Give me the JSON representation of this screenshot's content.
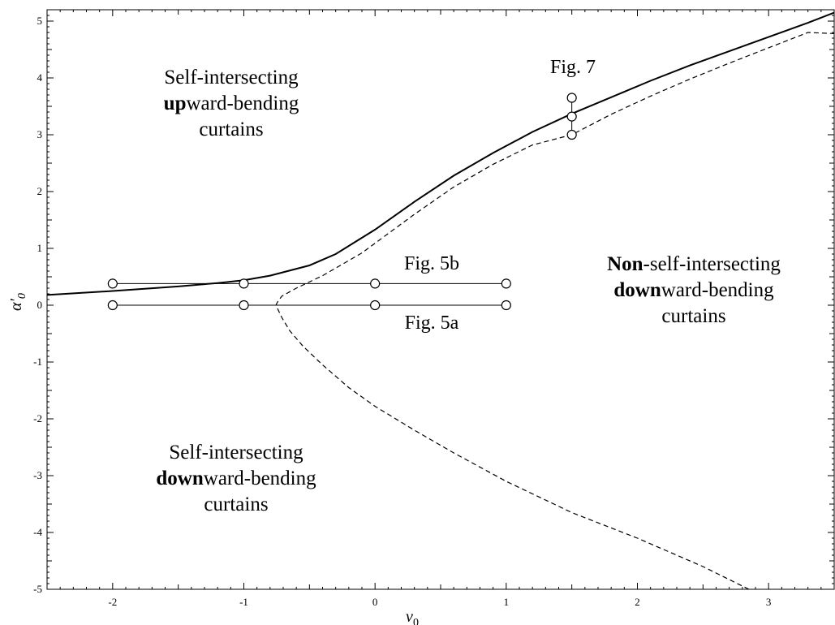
{
  "chart_data": {
    "type": "line",
    "xlabel": "v",
    "xlabel_subscript": "0",
    "ylabel": "α′",
    "ylabel_subscript": "0",
    "xlim": [
      -2.5,
      3.5
    ],
    "ylim": [
      -5,
      5.2
    ],
    "x_ticks": [
      -2,
      -1,
      0,
      1,
      2,
      3
    ],
    "x_tick_labels": [
      "-2",
      "-1",
      "0",
      "1",
      "2",
      "3"
    ],
    "y_ticks": [
      -5,
      -4,
      -3,
      -2,
      -1,
      0,
      1,
      2,
      3,
      4,
      5
    ],
    "y_tick_labels": [
      "-5",
      "-4",
      "-3",
      "-2",
      "-1",
      "0",
      "1",
      "2",
      "3",
      "4",
      "5"
    ],
    "series": [
      {
        "style": "solid",
        "x": [
          -2.5,
          -2.0,
          -1.5,
          -1.2,
          -1.0,
          -0.8,
          -0.5,
          -0.3,
          0.0,
          0.3,
          0.6,
          0.9,
          1.2,
          1.5,
          1.8,
          2.1,
          2.4,
          2.7,
          3.0,
          3.3,
          3.5
        ],
        "y": [
          0.18,
          0.25,
          0.33,
          0.39,
          0.44,
          0.52,
          0.7,
          0.9,
          1.33,
          1.82,
          2.28,
          2.68,
          3.05,
          3.37,
          3.66,
          3.95,
          4.22,
          4.47,
          4.72,
          4.97,
          5.15
        ]
      },
      {
        "style": "dashed",
        "x": [
          2.85,
          2.5,
          2.0,
          1.5,
          1.0,
          0.6,
          0.3,
          0.0,
          -0.2,
          -0.4,
          -0.55,
          -0.65,
          -0.71,
          -0.745,
          -0.755,
          -0.745,
          -0.71,
          -0.6,
          -0.4,
          -0.1,
          0.3,
          0.6,
          0.9,
          1.2,
          1.5,
          1.8,
          2.1,
          2.4,
          2.7,
          3.0,
          3.3,
          3.5
        ],
        "y": [
          -5.0,
          -4.6,
          -4.1,
          -3.65,
          -3.1,
          -2.6,
          -2.2,
          -1.78,
          -1.45,
          -1.05,
          -0.72,
          -0.45,
          -0.22,
          -0.05,
          0.0,
          0.05,
          0.16,
          0.3,
          0.52,
          0.92,
          1.6,
          2.08,
          2.48,
          2.82,
          3.0,
          3.36,
          3.68,
          3.98,
          4.26,
          4.53,
          4.8,
          4.78
        ]
      }
    ],
    "marker_lines": [
      {
        "label": "Fig. 5b",
        "points": [
          [
            -2,
            0.38
          ],
          [
            -1,
            0.38
          ],
          [
            0,
            0.38
          ],
          [
            1,
            0.38
          ]
        ]
      },
      {
        "label": "Fig. 5a",
        "points": [
          [
            -2,
            0.0
          ],
          [
            -1,
            0.0
          ],
          [
            0,
            0.0
          ],
          [
            1,
            0.0
          ]
        ]
      },
      {
        "label": "Fig. 7",
        "points": [
          [
            1.5,
            3.0
          ],
          [
            1.5,
            3.32
          ],
          [
            1.5,
            3.65
          ]
        ]
      }
    ],
    "regions": [
      {
        "lines": [
          [
            {
              "text": "Self-intersecting",
              "bold": false
            }
          ],
          [
            {
              "text": "up",
              "bold": true
            },
            {
              "text": "ward-bending",
              "bold": false
            }
          ],
          [
            {
              "text": "curtains",
              "bold": false
            }
          ]
        ]
      },
      {
        "lines": [
          [
            {
              "text": "Non",
              "bold": true
            },
            {
              "text": "-self-intersecting",
              "bold": false
            }
          ],
          [
            {
              "text": "down",
              "bold": true
            },
            {
              "text": "ward-bending",
              "bold": false
            }
          ],
          [
            {
              "text": "curtains",
              "bold": false
            }
          ]
        ]
      },
      {
        "lines": [
          [
            {
              "text": "Self-intersecting",
              "bold": false
            }
          ],
          [
            {
              "text": "down",
              "bold": true
            },
            {
              "text": "ward-bending",
              "bold": false
            }
          ],
          [
            {
              "text": "curtains",
              "bold": false
            }
          ]
        ]
      }
    ]
  }
}
